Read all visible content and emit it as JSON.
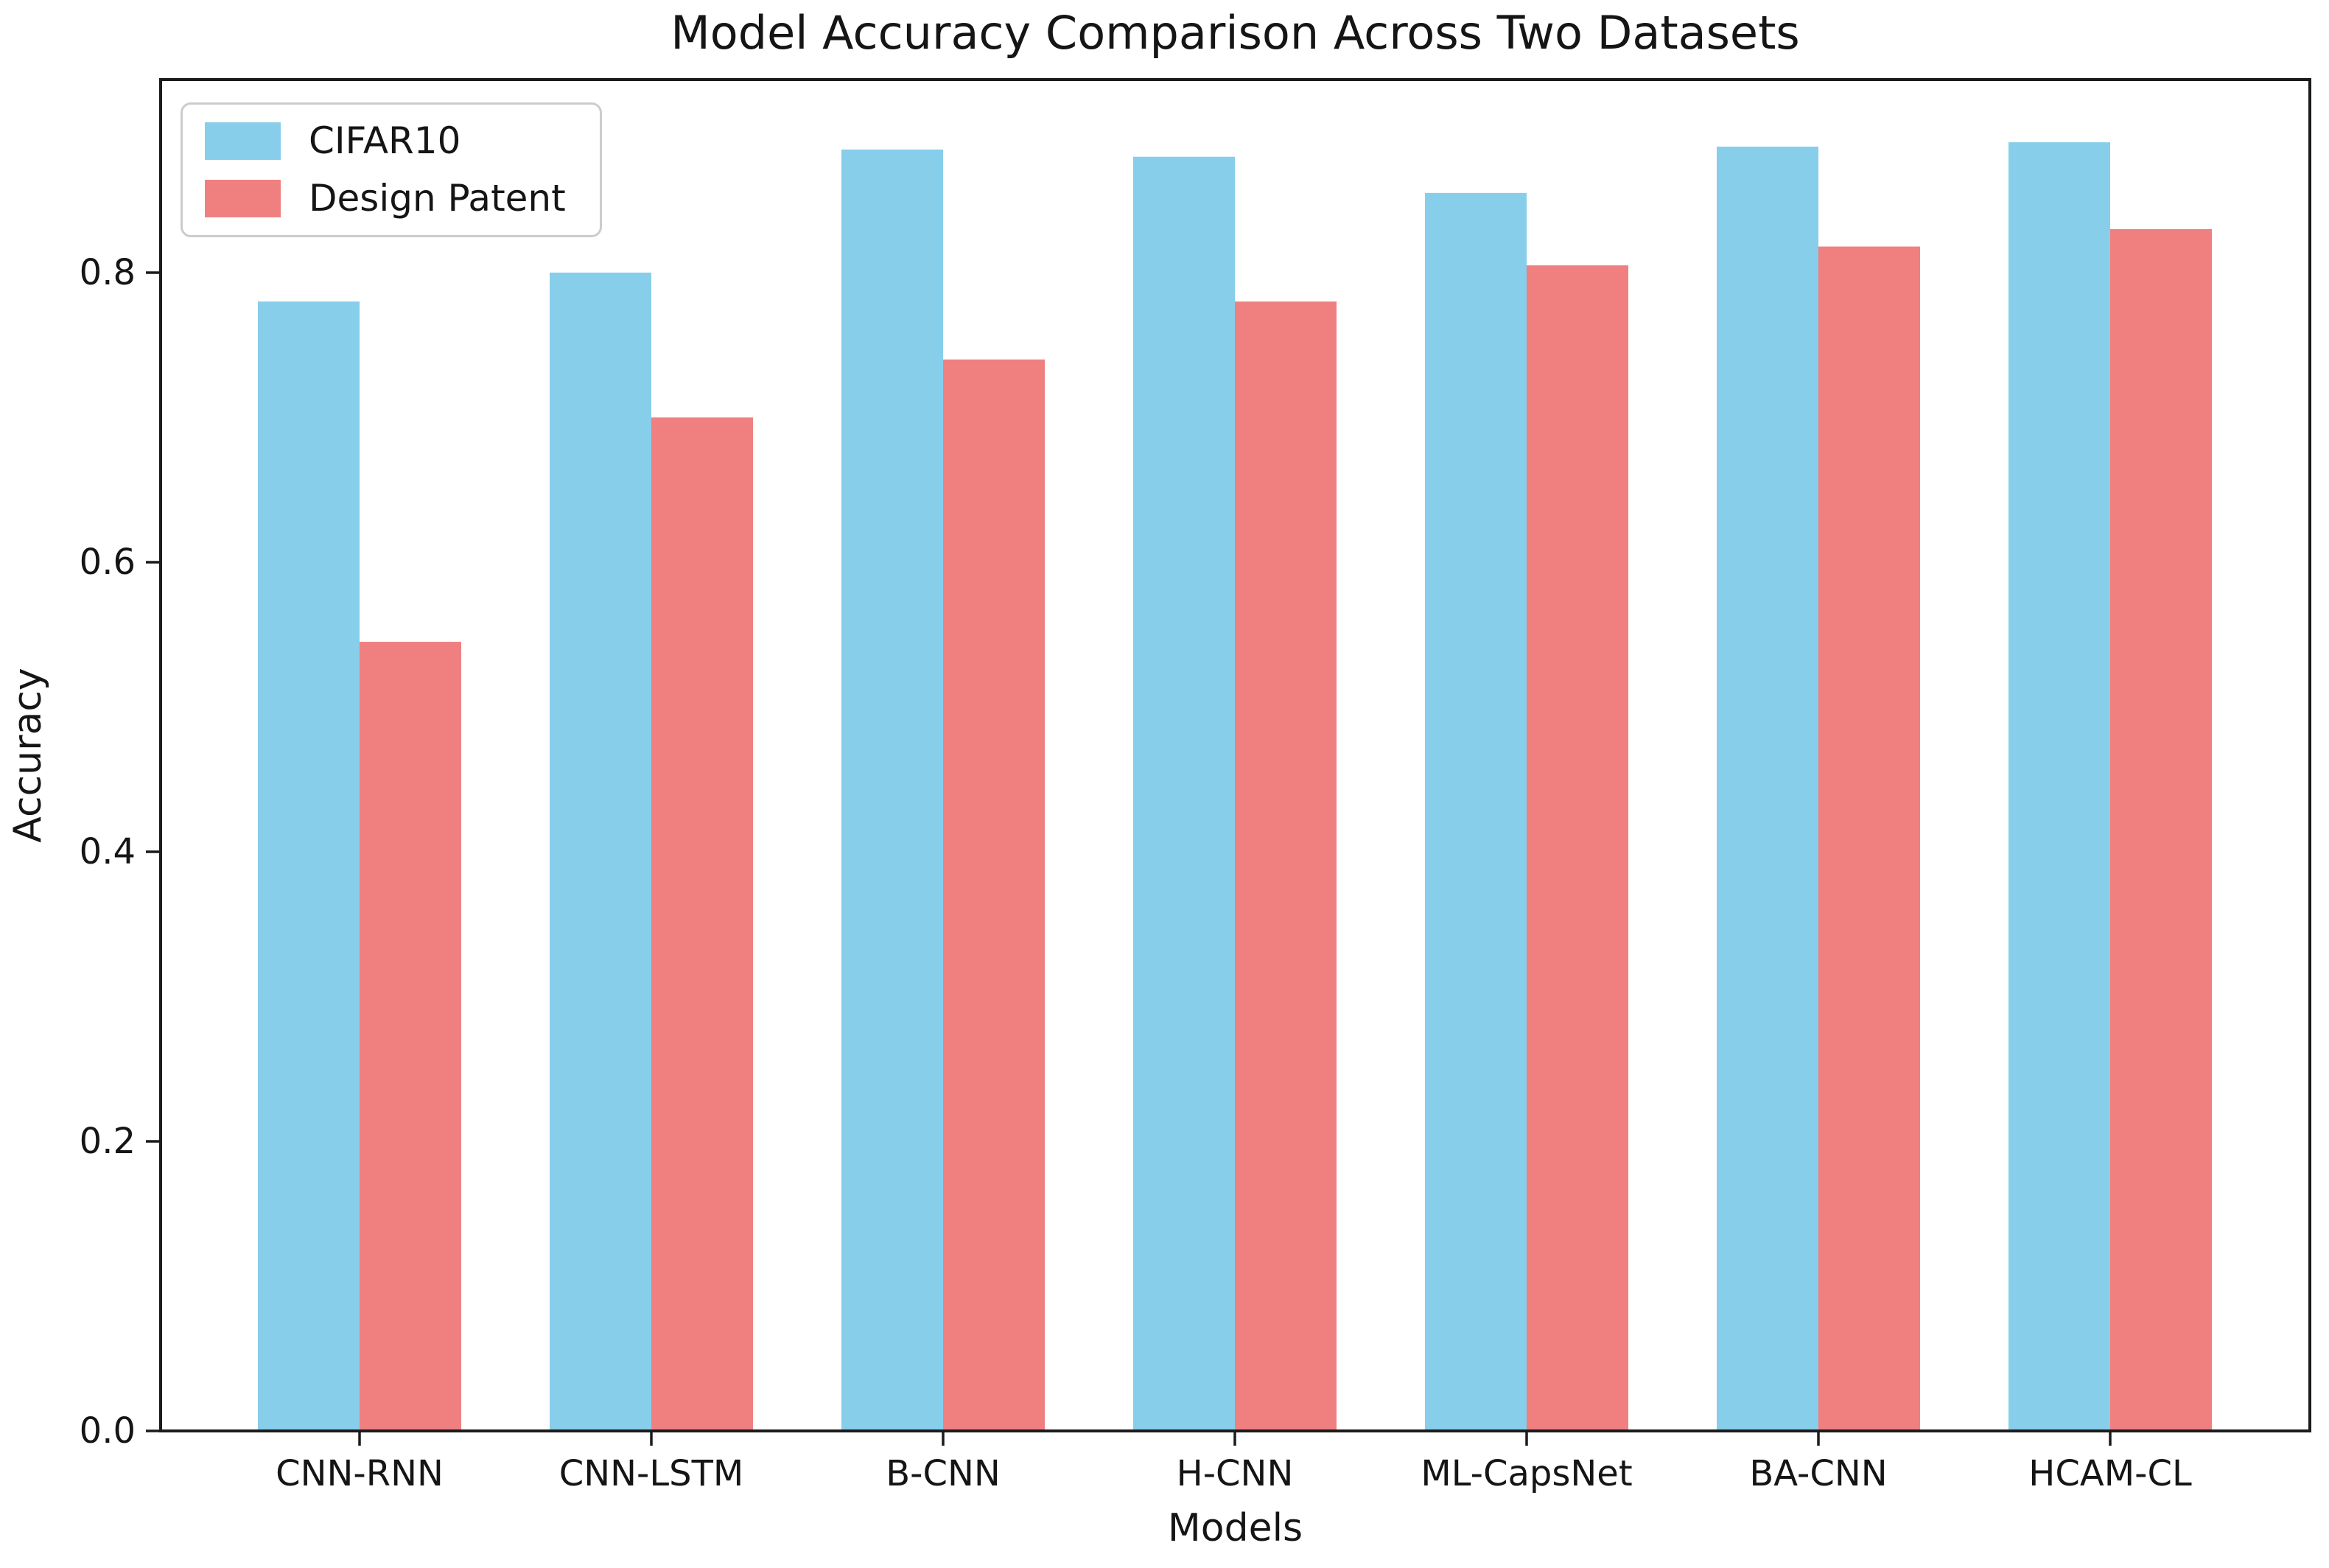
{
  "figure": {
    "background": "#ffffff",
    "text_color": "#151515",
    "spine_color": "#1b1b1b",
    "legend_border_color": "#cccccc"
  },
  "chart_data": {
    "type": "bar",
    "title": "Model Accuracy Comparison Across Two Datasets",
    "xlabel": "Models",
    "ylabel": "Accuracy",
    "categories": [
      "CNN-RNN",
      "CNN-LSTM",
      "B-CNN",
      "H-CNN",
      "ML-CapsNet",
      "BA-CNN",
      "HCAM-CL"
    ],
    "series": [
      {
        "name": "CIFAR10",
        "color": "#87CEEB",
        "values": [
          0.78,
          0.8,
          0.885,
          0.88,
          0.855,
          0.887,
          0.89
        ]
      },
      {
        "name": "Design Patent",
        "color": "#F08080",
        "values": [
          0.545,
          0.7,
          0.74,
          0.78,
          0.805,
          0.818,
          0.83
        ]
      }
    ],
    "ylim": [
      0.0,
      0.9333
    ],
    "yticks": [
      0.0,
      0.2,
      0.4,
      0.6,
      0.8
    ],
    "ytick_labels": [
      "0.0",
      "0.2",
      "0.4",
      "0.6",
      "0.8"
    ],
    "grid": false,
    "legend_position": "upper-left"
  }
}
